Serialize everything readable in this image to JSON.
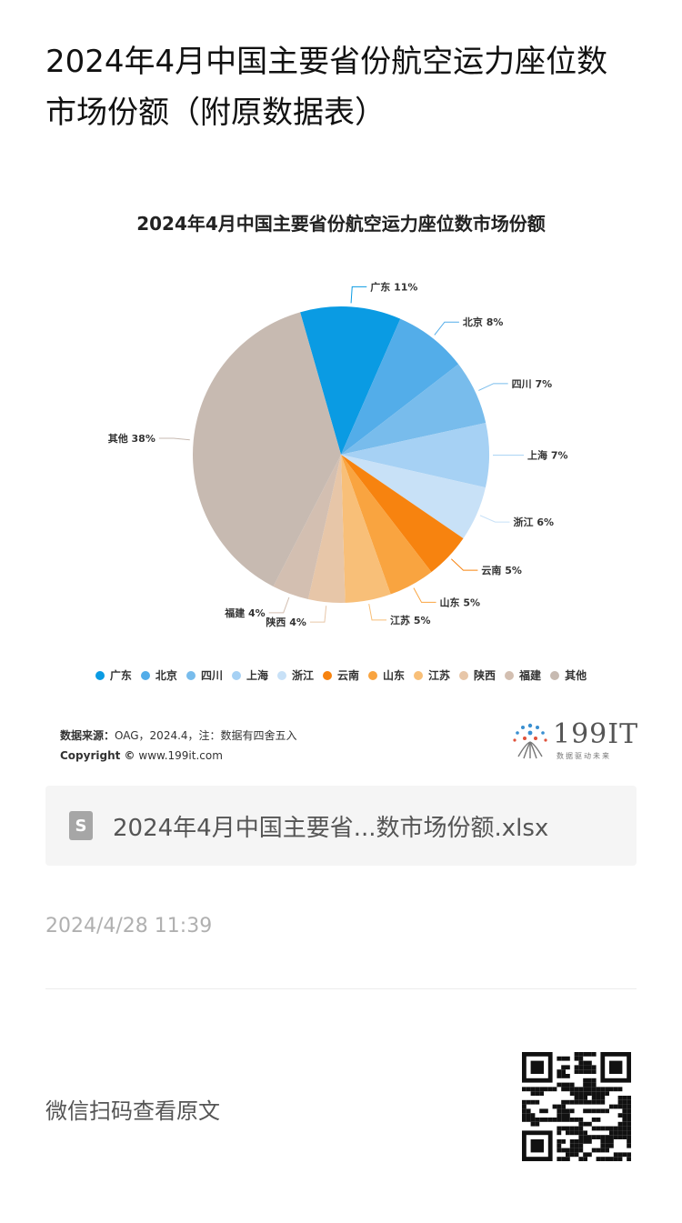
{
  "article": {
    "title": "2024年4月中国主要省份航空运力座位数市场份额（附原数据表）"
  },
  "chart": {
    "source_label": "数据来源：",
    "source_text": "OAG，2024.4，注：数据有四舍五入",
    "copyright_label": "Copyright ©",
    "copyright_url": "www.199it.com",
    "brand_name": "199IT",
    "brand_tagline": "数据驱动未来"
  },
  "chart_data": {
    "type": "pie",
    "title": "2024年4月中国主要省份航空运力座位数市场份额",
    "categories": [
      "广东",
      "北京",
      "四川",
      "上海",
      "浙江",
      "云南",
      "山东",
      "江苏",
      "陕西",
      "福建",
      "其他"
    ],
    "values": [
      11,
      8,
      7,
      7,
      6,
      5,
      5,
      5,
      4,
      4,
      38
    ],
    "labels": [
      "广东 11%",
      "北京 8%",
      "四川 7%",
      "上海 7%",
      "浙江 6%",
      "云南 5%",
      "山东 5%",
      "江苏 5%",
      "陕西 4%",
      "福建 4%",
      "其他 38%"
    ],
    "unit": "%",
    "legend_position": "bottom",
    "colors": [
      "#0a9be3",
      "#53ade9",
      "#78bcec",
      "#a6d1f4",
      "#c8e1f7",
      "#f7830f",
      "#f9a440",
      "#f8bf78",
      "#e7c6a8",
      "#d3bfb1",
      "#c7bab1"
    ]
  },
  "attachment": {
    "file_name": "2024年4月中国主要省...数市场份额.xlsx",
    "file_icon": "spreadsheet-file-icon",
    "icon_letter": "S"
  },
  "timestamp": "2024/4/28 11:39",
  "footer": {
    "scan_text": "微信扫码查看原文",
    "qr_icon": "qr-code-icon"
  }
}
